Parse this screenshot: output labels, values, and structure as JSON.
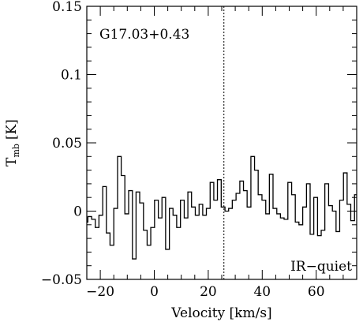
{
  "chart_data": {
    "type": "line",
    "style": "step",
    "title": "",
    "xlabel": "Velocity [km/s]",
    "ylabel_main": "T",
    "ylabel_sub": "mb",
    "ylabel_unit": "[K]",
    "xlim": [
      -25,
      75
    ],
    "ylim": [
      -0.05,
      0.15
    ],
    "xticks": [
      -20,
      0,
      20,
      40,
      60
    ],
    "xtick_labels": [
      "−20",
      "0",
      "20",
      "40",
      "60"
    ],
    "yticks": [
      -0.05,
      0,
      0.05,
      0.1,
      0.15
    ],
    "ytick_labels": [
      "−0.05",
      "0",
      "0.05",
      "0.1",
      "0.15"
    ],
    "annotations": {
      "source": "G17.03+0.43",
      "ir_class": "IR−quiet"
    },
    "reference_line_velocity": 25.8,
    "series": [
      {
        "x": [
          -25.3,
          -23.9,
          -22.5,
          -21.2,
          -19.8,
          -18.4,
          -17.1,
          -15.7,
          -14.3,
          -12.9,
          -11.6,
          -10.2,
          -8.8,
          -7.4,
          -6.1,
          -4.7,
          -3.3,
          -2.0,
          -0.6,
          0.8,
          2.2,
          3.5,
          4.9,
          6.3,
          7.6,
          9.0,
          10.4,
          11.8,
          13.1,
          14.5,
          15.9,
          17.3,
          18.6,
          20.0,
          21.4,
          22.7,
          24.1,
          25.5,
          26.9,
          28.2,
          29.6,
          31.0,
          32.4,
          33.7,
          35.1,
          36.5,
          37.8,
          39.2,
          40.6,
          42.0,
          43.3,
          44.7,
          46.1,
          47.4,
          48.8,
          50.2,
          51.6,
          52.9,
          54.3,
          55.7,
          57.1,
          58.4,
          59.8,
          61.2,
          62.5,
          63.9,
          65.3,
          66.7,
          68.0,
          69.4,
          70.8,
          72.1,
          73.5,
          74.9
        ],
        "values": [
          -0.008,
          -0.004,
          -0.006,
          -0.012,
          -0.003,
          0.018,
          -0.016,
          -0.025,
          0.002,
          0.04,
          0.026,
          -0.002,
          0.015,
          -0.035,
          0.014,
          0.006,
          -0.014,
          -0.025,
          -0.012,
          0.008,
          -0.005,
          0.01,
          -0.028,
          0.002,
          -0.003,
          -0.012,
          0.008,
          -0.005,
          0.014,
          0.003,
          -0.003,
          0.005,
          -0.003,
          0.002,
          0.021,
          0.008,
          0.023,
          0.003,
          0.0,
          0.002,
          0.008,
          0.013,
          0.022,
          0.015,
          0.003,
          0.04,
          0.03,
          0.012,
          0.008,
          -0.002,
          0.027,
          0.002,
          -0.002,
          -0.005,
          -0.006,
          0.021,
          0.012,
          -0.008,
          -0.01,
          0.003,
          0.02,
          -0.017,
          0.01,
          -0.018,
          -0.014,
          0.02,
          0.004,
          0.0,
          -0.015,
          0.008,
          0.028,
          0.005,
          -0.007,
          0.012
        ]
      }
    ]
  }
}
